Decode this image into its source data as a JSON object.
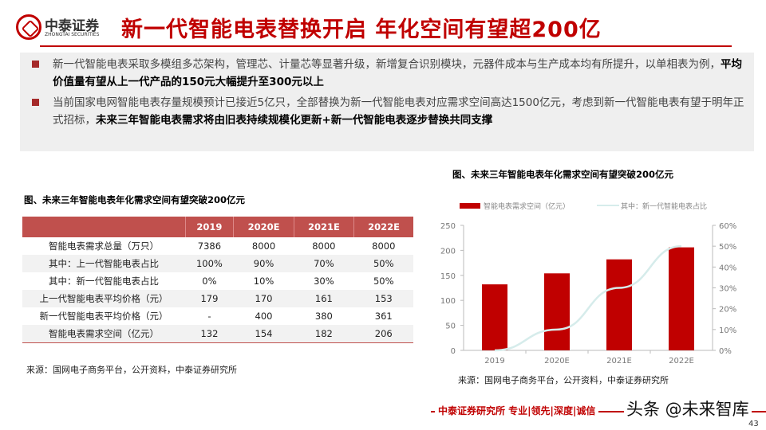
{
  "header": {
    "logo_cn": "中泰证券",
    "logo_en": "ZHONGTAI SECURITIES",
    "title": "新一代智能电表替换开启 年化空间有望超200亿"
  },
  "summary": {
    "bullets": [
      {
        "normal": "新一代智能电表采取多模组多芯架构，管理芯、计量芯等显著升级，新增复合识别模块，元器件成本与生产成本均有所提升，以单相表为例，",
        "bold": "平均价值量有望从上一代产品的150元大幅提升至300元以上"
      },
      {
        "normal": "当前国家电网智能电表存量规模预计已接近5亿只，全部替换为新一代智能电表对应需求空间高达1500亿元，考虑到新一代智能电表有望于明年正式招标，",
        "bold": "未来三年智能电表需求将由旧表持续规模化更新+新一代智能电表逐步替换共同支撑"
      }
    ],
    "bullet_color": "#a52a2a"
  },
  "table": {
    "caption": "图、未来三年智能电表年化需求空间有望突破200亿元",
    "headers": [
      "",
      "2019",
      "2020E",
      "2021E",
      "2022E"
    ],
    "rows": [
      [
        "智能电表需求总量（万只）",
        "7386",
        "8000",
        "8000",
        "8000"
      ],
      [
        "其中：上一代智能电表占比",
        "100%",
        "90%",
        "70%",
        "50%"
      ],
      [
        "其中：新一代智能电表占比",
        "0%",
        "10%",
        "30%",
        "50%"
      ],
      [
        "上一代智能电表平均价格（元）",
        "179",
        "170",
        "161",
        "153"
      ],
      [
        "新一代智能电表平均价格（元）",
        "-",
        "400",
        "380",
        "361"
      ],
      [
        "智能电表需求空间（亿元）",
        "132",
        "154",
        "182",
        "206"
      ]
    ],
    "header_color": "#c0504d",
    "source": "来源：国网电子商务平台，公开资料，中泰证券研究所"
  },
  "chart_data": {
    "type": "bar+line",
    "title": "图、未来三年智能电表年化需求空间有望突破200亿元",
    "categories": [
      "2019",
      "2020E",
      "2021E",
      "2022E"
    ],
    "series": [
      {
        "name": "智能电表需求空间（亿元）",
        "type": "bar",
        "axis": "left",
        "values": [
          132,
          154,
          182,
          206
        ],
        "color": "#c00000"
      },
      {
        "name": "其中：新一代智能电表占比",
        "type": "line",
        "axis": "right",
        "values": [
          0,
          0.1,
          0.3,
          0.5
        ],
        "color": "#d6eceb"
      }
    ],
    "y_left": {
      "min": 0,
      "max": 250,
      "ticks": [
        "0",
        "50",
        "100",
        "150",
        "200",
        "250"
      ]
    },
    "y_right": {
      "min": 0,
      "max": 0.6,
      "ticks": [
        "0%",
        "10%",
        "20%",
        "30%",
        "40%",
        "50%",
        "60%"
      ]
    },
    "legend": "top",
    "grid": false,
    "source": "来源：国网电子商务平台，公开资料，中泰证券研究所"
  },
  "footer": {
    "text": "中泰证券研究所 专业|领先|深度|诚信",
    "watermark": "头条 @未来智库",
    "page": "43"
  }
}
